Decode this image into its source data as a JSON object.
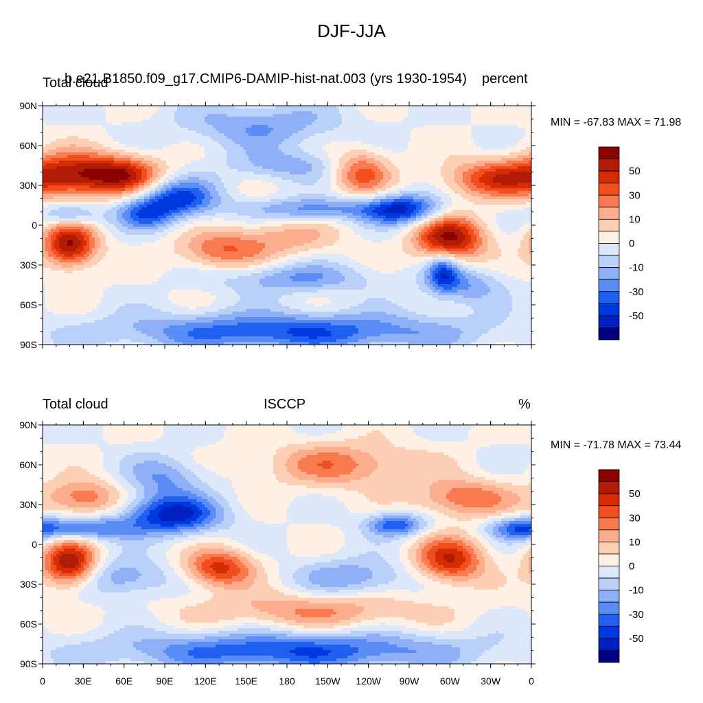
{
  "title": "DJF-JJA",
  "colors": [
    "#000080",
    "#0020c0",
    "#0038e0",
    "#2060f0",
    "#5a8cf5",
    "#8fb0f7",
    "#b9d1f9",
    "#dde9fb",
    "#fff0e6",
    "#fdd0b6",
    "#fbad8e",
    "#f87a4e",
    "#f24d1d",
    "#d62c05",
    "#b01c05",
    "#8b0000"
  ],
  "colorbar_labels": [
    "50",
    "30",
    "10",
    "0",
    "-10",
    "-30",
    "-50"
  ],
  "lat_labels": [
    "90N",
    "60N",
    "30N",
    "0",
    "30S",
    "60S",
    "90S"
  ],
  "lon_labels": [
    "0",
    "30E",
    "60E",
    "90E",
    "120E",
    "150E",
    "180",
    "150W",
    "120W",
    "90W",
    "60W",
    "30W",
    "0"
  ],
  "panels": [
    {
      "left_title": "Total cloud",
      "center_title": "b.e21.B1850.f09_g17.CMIP6-DAMIP-hist-nat.003 (yrs 1930-1954)",
      "right_title": "percent",
      "stats": "MIN = -67.83 MAX =  71.98"
    },
    {
      "left_title": "Total cloud",
      "center_title": "ISCCP",
      "right_title": "%",
      "stats": "MIN = -71.78 MAX =  73.44"
    }
  ],
  "map_field": {
    "panel1": [
      {
        "lon": 20,
        "lat": 38,
        "v": 60,
        "sl": 25,
        "sa": 12
      },
      {
        "lon": 60,
        "lat": 38,
        "v": 55,
        "sl": 20,
        "sa": 10
      },
      {
        "lon": 20,
        "lat": -15,
        "v": 70,
        "sl": 14,
        "sa": 12
      },
      {
        "lon": 300,
        "lat": -10,
        "v": 72,
        "sl": 18,
        "sa": 12
      },
      {
        "lon": 130,
        "lat": -20,
        "v": 35,
        "sl": 22,
        "sa": 10
      },
      {
        "lon": 235,
        "lat": 40,
        "v": 45,
        "sl": 15,
        "sa": 12
      },
      {
        "lon": 330,
        "lat": 35,
        "v": 45,
        "sl": 25,
        "sa": 10
      },
      {
        "lon": 175,
        "lat": -10,
        "v": 25,
        "sl": 30,
        "sa": 10
      },
      {
        "lon": 100,
        "lat": 20,
        "v": -55,
        "sl": 20,
        "sa": 10
      },
      {
        "lon": 75,
        "lat": 8,
        "v": -40,
        "sl": 15,
        "sa": 8
      },
      {
        "lon": 20,
        "lat": 8,
        "v": -35,
        "sl": 15,
        "sa": 6
      },
      {
        "lon": 265,
        "lat": 12,
        "v": -60,
        "sl": 20,
        "sa": 8
      },
      {
        "lon": 200,
        "lat": 12,
        "v": -35,
        "sl": 35,
        "sa": 6
      },
      {
        "lon": 185,
        "lat": -40,
        "v": -30,
        "sl": 40,
        "sa": 8
      },
      {
        "lon": 180,
        "lat": -80,
        "v": -50,
        "sl": 90,
        "sa": 10
      },
      {
        "lon": 160,
        "lat": 75,
        "v": -30,
        "sl": 40,
        "sa": 12
      },
      {
        "lon": 310,
        "lat": -45,
        "v": -30,
        "sl": 20,
        "sa": 10
      },
      {
        "lon": 295,
        "lat": -35,
        "v": -45,
        "sl": 8,
        "sa": 10
      },
      {
        "lon": 180,
        "lat": 45,
        "v": -25,
        "sl": 30,
        "sa": 8
      }
    ],
    "panel2": [
      {
        "lon": 20,
        "lat": -15,
        "v": 72,
        "sl": 14,
        "sa": 12
      },
      {
        "lon": 300,
        "lat": -12,
        "v": 60,
        "sl": 18,
        "sa": 12
      },
      {
        "lon": 130,
        "lat": -18,
        "v": 55,
        "sl": 18,
        "sa": 10
      },
      {
        "lon": 30,
        "lat": 35,
        "v": 40,
        "sl": 20,
        "sa": 10
      },
      {
        "lon": 310,
        "lat": 35,
        "v": 40,
        "sl": 25,
        "sa": 10
      },
      {
        "lon": 220,
        "lat": 60,
        "v": 35,
        "sl": 40,
        "sa": 12
      },
      {
        "lon": 200,
        "lat": -50,
        "v": 30,
        "sl": 60,
        "sa": 10
      },
      {
        "lon": 95,
        "lat": 22,
        "v": -65,
        "sl": 25,
        "sa": 10
      },
      {
        "lon": 30,
        "lat": 12,
        "v": -45,
        "sl": 25,
        "sa": 6
      },
      {
        "lon": 90,
        "lat": 50,
        "v": -30,
        "sl": 20,
        "sa": 12
      },
      {
        "lon": 260,
        "lat": 15,
        "v": -50,
        "sl": 15,
        "sa": 6
      },
      {
        "lon": 350,
        "lat": 12,
        "v": -40,
        "sl": 15,
        "sa": 6
      },
      {
        "lon": 180,
        "lat": -80,
        "v": -50,
        "sl": 90,
        "sa": 10
      },
      {
        "lon": 230,
        "lat": -25,
        "v": -30,
        "sl": 30,
        "sa": 10
      },
      {
        "lon": 60,
        "lat": -25,
        "v": -30,
        "sl": 25,
        "sa": 10
      }
    ]
  }
}
